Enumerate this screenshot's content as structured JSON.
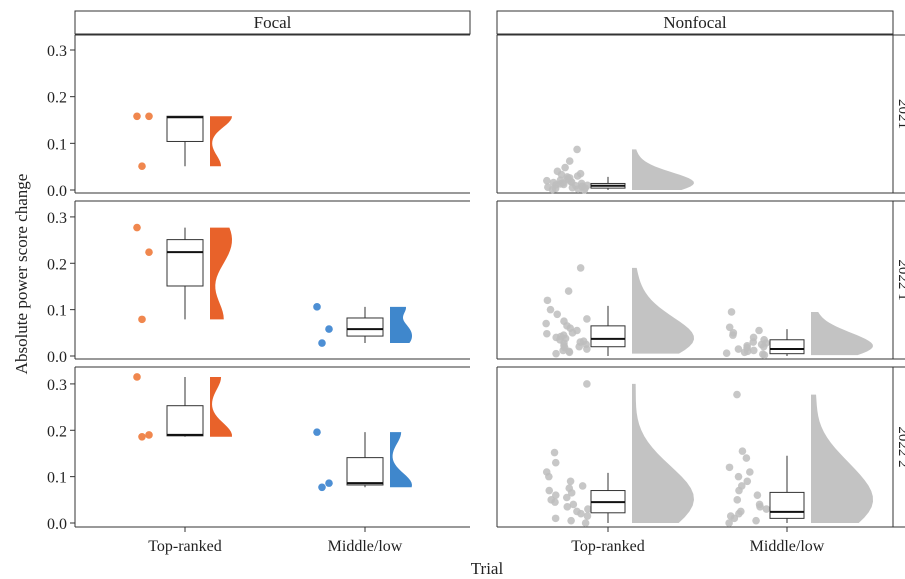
{
  "chart_data": {
    "type": "raincloud-boxplot",
    "ylabel": "Absolute power score change",
    "xlabel": "Trial",
    "facet_columns": [
      "Focal",
      "Nonfocal"
    ],
    "facet_rows": [
      "2021",
      "2022 1",
      "2022 2"
    ],
    "facet_rows_visible": [
      "2021",
      "2022 1",
      "2022 2"
    ],
    "x_categories": [
      "Top-ranked",
      "Middle/low"
    ],
    "y_ticks": [
      "0.0",
      "0.1",
      "0.2",
      "0.3"
    ],
    "ylim": [
      0,
      0.33
    ],
    "colors": {
      "top_ranked": "#E8622A",
      "middle_low": "#3F87CC",
      "nonfocal": "#BDBDBD",
      "top_ranked_point": "#F0874E",
      "middle_low_point": "#4D8FD4"
    },
    "panels": [
      {
        "row": 0,
        "col": 0,
        "category": 0,
        "group": "top_ranked",
        "points": [
          0.158,
          0.158,
          0.051
        ],
        "box": {
          "min": 0.051,
          "q1": 0.104,
          "median": 0.156,
          "q3": 0.158,
          "max": 0.158
        }
      },
      {
        "row": 0,
        "col": 1,
        "category": 0,
        "group": "nonfocal",
        "points": [
          0.087,
          0.062,
          0.048,
          0.04,
          0.035,
          0.03,
          0.028,
          0.025,
          0.022,
          0.02,
          0.018,
          0.017,
          0.015,
          0.014,
          0.013,
          0.012,
          0.011,
          0.01,
          0.009,
          0.008,
          0.007,
          0.006,
          0.005,
          0.004,
          0.003,
          0.002,
          0.001,
          0.0,
          0.016,
          0.021,
          0.026,
          0.033
        ],
        "box": {
          "min": 0.0,
          "q1": 0.004,
          "median": 0.009,
          "q3": 0.014,
          "max": 0.028
        }
      },
      {
        "row": 1,
        "col": 0,
        "category": 0,
        "group": "top_ranked",
        "points": [
          0.277,
          0.224,
          0.079
        ],
        "box": {
          "min": 0.079,
          "q1": 0.151,
          "median": 0.224,
          "q3": 0.251,
          "max": 0.277
        }
      },
      {
        "row": 1,
        "col": 0,
        "category": 1,
        "group": "middle_low",
        "points": [
          0.106,
          0.058,
          0.028
        ],
        "box": {
          "min": 0.028,
          "q1": 0.043,
          "median": 0.058,
          "q3": 0.082,
          "max": 0.106
        }
      },
      {
        "row": 1,
        "col": 1,
        "category": 0,
        "group": "nonfocal",
        "points": [
          0.19,
          0.14,
          0.12,
          0.1,
          0.09,
          0.08,
          0.075,
          0.07,
          0.065,
          0.06,
          0.055,
          0.05,
          0.048,
          0.045,
          0.042,
          0.04,
          0.038,
          0.035,
          0.032,
          0.03,
          0.028,
          0.025,
          0.022,
          0.02,
          0.018,
          0.015,
          0.012,
          0.01,
          0.008,
          0.005
        ],
        "box": {
          "min": 0.0,
          "q1": 0.02,
          "median": 0.037,
          "q3": 0.065,
          "max": 0.108
        }
      },
      {
        "row": 1,
        "col": 1,
        "category": 1,
        "group": "nonfocal",
        "points": [
          0.095,
          0.062,
          0.055,
          0.05,
          0.045,
          0.04,
          0.035,
          0.03,
          0.028,
          0.025,
          0.022,
          0.02,
          0.018,
          0.015,
          0.012,
          0.01,
          0.008,
          0.006,
          0.004,
          0.002
        ],
        "box": {
          "min": 0.0,
          "q1": 0.005,
          "median": 0.015,
          "q3": 0.035,
          "max": 0.058
        }
      },
      {
        "row": 2,
        "col": 0,
        "category": 0,
        "group": "top_ranked",
        "points": [
          0.315,
          0.19,
          0.186
        ],
        "box": {
          "min": 0.186,
          "q1": 0.188,
          "median": 0.19,
          "q3": 0.253,
          "max": 0.315
        }
      },
      {
        "row": 2,
        "col": 0,
        "category": 1,
        "group": "middle_low",
        "points": [
          0.196,
          0.086,
          0.077
        ],
        "box": {
          "min": 0.077,
          "q1": 0.082,
          "median": 0.086,
          "q3": 0.141,
          "max": 0.196
        }
      },
      {
        "row": 2,
        "col": 1,
        "category": 0,
        "group": "nonfocal",
        "points": [
          0.3,
          0.152,
          0.13,
          0.11,
          0.1,
          0.09,
          0.08,
          0.075,
          0.07,
          0.065,
          0.06,
          0.055,
          0.05,
          0.045,
          0.04,
          0.035,
          0.03,
          0.025,
          0.02,
          0.015,
          0.01,
          0.005,
          0.0
        ],
        "box": {
          "min": 0.0,
          "q1": 0.022,
          "median": 0.045,
          "q3": 0.07,
          "max": 0.108
        }
      },
      {
        "row": 2,
        "col": 1,
        "category": 1,
        "group": "nonfocal",
        "points": [
          0.277,
          0.155,
          0.14,
          0.12,
          0.11,
          0.1,
          0.09,
          0.08,
          0.07,
          0.06,
          0.05,
          0.04,
          0.035,
          0.03,
          0.025,
          0.02,
          0.015,
          0.01,
          0.005,
          0.0
        ],
        "box": {
          "min": 0.0,
          "q1": 0.01,
          "median": 0.024,
          "q3": 0.066,
          "max": 0.145
        }
      }
    ]
  }
}
